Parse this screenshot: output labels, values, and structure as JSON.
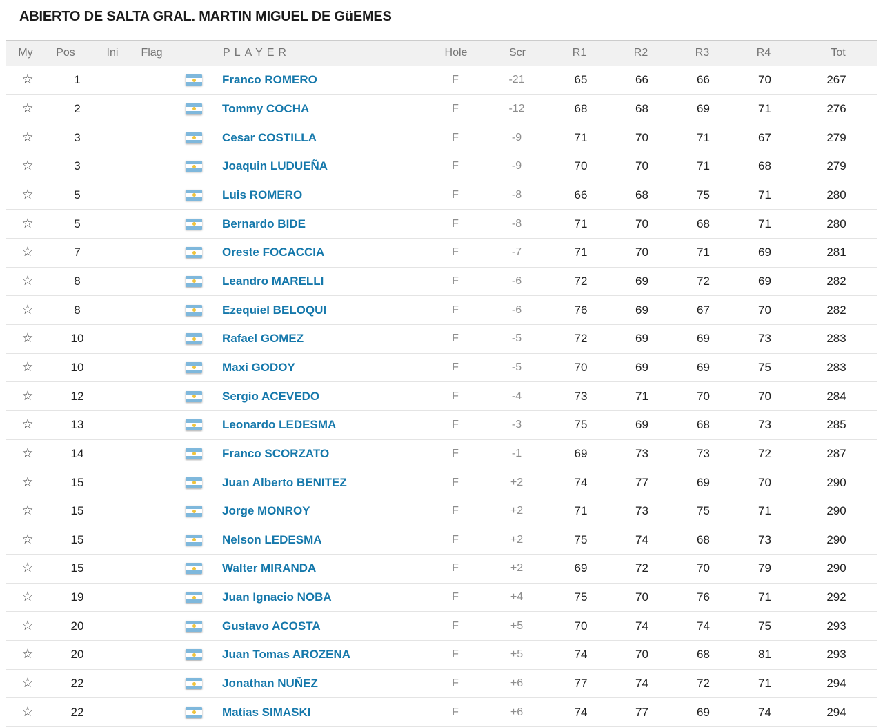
{
  "title": "ABIERTO DE SALTA GRAL. MARTIN MIGUEL DE GüEMES",
  "icons": {
    "favorite_star": "☆",
    "flag_country": "argentina-flag"
  },
  "colors": {
    "player_link": "#1578ab",
    "header_text": "#757575",
    "value_text": "#212121",
    "muted_text": "#8d8d8d",
    "header_bg": "#f1f1f1",
    "flag_blue": "#7fb8dc",
    "flag_sun": "#f0c43c"
  },
  "table": {
    "columns": {
      "my": "My",
      "pos": "Pos",
      "ini": "Ini",
      "flag": "Flag",
      "player": "PLAYER",
      "hole": "Hole",
      "scr": "Scr",
      "r1": "R1",
      "r2": "R2",
      "r3": "R3",
      "r4": "R4",
      "tot": "Tot"
    },
    "rows": [
      {
        "pos": "1",
        "player": "Franco ROMERO",
        "hole": "F",
        "scr": "-21",
        "r1": "65",
        "r2": "66",
        "r3": "66",
        "r4": "70",
        "tot": "267"
      },
      {
        "pos": "2",
        "player": "Tommy COCHA",
        "hole": "F",
        "scr": "-12",
        "r1": "68",
        "r2": "68",
        "r3": "69",
        "r4": "71",
        "tot": "276"
      },
      {
        "pos": "3",
        "player": "Cesar COSTILLA",
        "hole": "F",
        "scr": "-9",
        "r1": "71",
        "r2": "70",
        "r3": "71",
        "r4": "67",
        "tot": "279"
      },
      {
        "pos": "3",
        "player": "Joaquin LUDUEÑA",
        "hole": "F",
        "scr": "-9",
        "r1": "70",
        "r2": "70",
        "r3": "71",
        "r4": "68",
        "tot": "279"
      },
      {
        "pos": "5",
        "player": "Luis ROMERO",
        "hole": "F",
        "scr": "-8",
        "r1": "66",
        "r2": "68",
        "r3": "75",
        "r4": "71",
        "tot": "280"
      },
      {
        "pos": "5",
        "player": "Bernardo BIDE",
        "hole": "F",
        "scr": "-8",
        "r1": "71",
        "r2": "70",
        "r3": "68",
        "r4": "71",
        "tot": "280"
      },
      {
        "pos": "7",
        "player": "Oreste FOCACCIA",
        "hole": "F",
        "scr": "-7",
        "r1": "71",
        "r2": "70",
        "r3": "71",
        "r4": "69",
        "tot": "281"
      },
      {
        "pos": "8",
        "player": "Leandro MARELLI",
        "hole": "F",
        "scr": "-6",
        "r1": "72",
        "r2": "69",
        "r3": "72",
        "r4": "69",
        "tot": "282"
      },
      {
        "pos": "8",
        "player": "Ezequiel BELOQUI",
        "hole": "F",
        "scr": "-6",
        "r1": "76",
        "r2": "69",
        "r3": "67",
        "r4": "70",
        "tot": "282"
      },
      {
        "pos": "10",
        "player": "Rafael GOMEZ",
        "hole": "F",
        "scr": "-5",
        "r1": "72",
        "r2": "69",
        "r3": "69",
        "r4": "73",
        "tot": "283"
      },
      {
        "pos": "10",
        "player": "Maxi GODOY",
        "hole": "F",
        "scr": "-5",
        "r1": "70",
        "r2": "69",
        "r3": "69",
        "r4": "75",
        "tot": "283"
      },
      {
        "pos": "12",
        "player": "Sergio ACEVEDO",
        "hole": "F",
        "scr": "-4",
        "r1": "73",
        "r2": "71",
        "r3": "70",
        "r4": "70",
        "tot": "284"
      },
      {
        "pos": "13",
        "player": "Leonardo LEDESMA",
        "hole": "F",
        "scr": "-3",
        "r1": "75",
        "r2": "69",
        "r3": "68",
        "r4": "73",
        "tot": "285"
      },
      {
        "pos": "14",
        "player": "Franco SCORZATO",
        "hole": "F",
        "scr": "-1",
        "r1": "69",
        "r2": "73",
        "r3": "73",
        "r4": "72",
        "tot": "287"
      },
      {
        "pos": "15",
        "player": "Juan Alberto BENITEZ",
        "hole": "F",
        "scr": "+2",
        "r1": "74",
        "r2": "77",
        "r3": "69",
        "r4": "70",
        "tot": "290"
      },
      {
        "pos": "15",
        "player": "Jorge MONROY",
        "hole": "F",
        "scr": "+2",
        "r1": "71",
        "r2": "73",
        "r3": "75",
        "r4": "71",
        "tot": "290"
      },
      {
        "pos": "15",
        "player": "Nelson LEDESMA",
        "hole": "F",
        "scr": "+2",
        "r1": "75",
        "r2": "74",
        "r3": "68",
        "r4": "73",
        "tot": "290"
      },
      {
        "pos": "15",
        "player": "Walter MIRANDA",
        "hole": "F",
        "scr": "+2",
        "r1": "69",
        "r2": "72",
        "r3": "70",
        "r4": "79",
        "tot": "290"
      },
      {
        "pos": "19",
        "player": "Juan Ignacio NOBA",
        "hole": "F",
        "scr": "+4",
        "r1": "75",
        "r2": "70",
        "r3": "76",
        "r4": "71",
        "tot": "292"
      },
      {
        "pos": "20",
        "player": "Gustavo ACOSTA",
        "hole": "F",
        "scr": "+5",
        "r1": "70",
        "r2": "74",
        "r3": "74",
        "r4": "75",
        "tot": "293"
      },
      {
        "pos": "20",
        "player": "Juan Tomas AROZENA",
        "hole": "F",
        "scr": "+5",
        "r1": "74",
        "r2": "70",
        "r3": "68",
        "r4": "81",
        "tot": "293"
      },
      {
        "pos": "22",
        "player": "Jonathan NUÑEZ",
        "hole": "F",
        "scr": "+6",
        "r1": "77",
        "r2": "74",
        "r3": "72",
        "r4": "71",
        "tot": "294"
      },
      {
        "pos": "22",
        "player": "Matías SIMASKI",
        "hole": "F",
        "scr": "+6",
        "r1": "74",
        "r2": "77",
        "r3": "69",
        "r4": "74",
        "tot": "294"
      }
    ]
  }
}
